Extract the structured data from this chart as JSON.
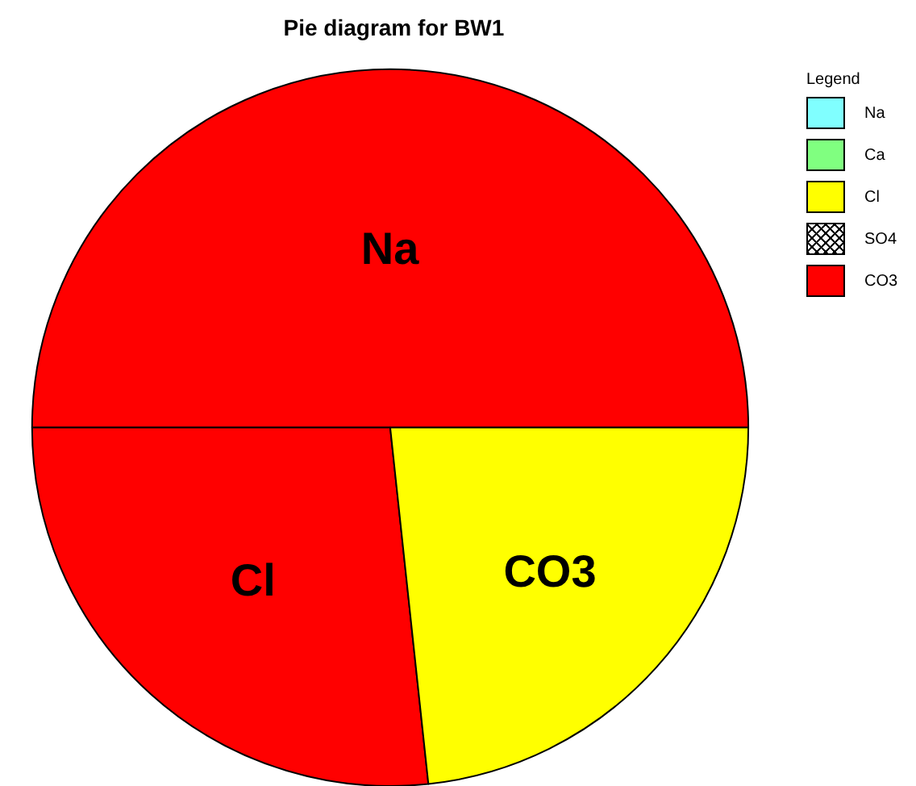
{
  "chart_data": [
    {
      "type": "pie",
      "title": "Pie diagram for BW1",
      "categories": [
        "Na",
        "Cl",
        "CO3"
      ],
      "values": [
        50,
        26.7,
        23.3
      ],
      "colors": [
        "#ff0000",
        "#ff0000",
        "#ffff00"
      ],
      "legend": false
    },
    {
      "type": "other",
      "legend_title": "Legend",
      "categories": [
        "Na",
        "Ca",
        "Cl",
        "SO4",
        "CO3"
      ],
      "colors": [
        "#80ffff",
        "#80ff80",
        "#ffff00",
        "#ffffff",
        "#ff0000"
      ]
    }
  ]
}
